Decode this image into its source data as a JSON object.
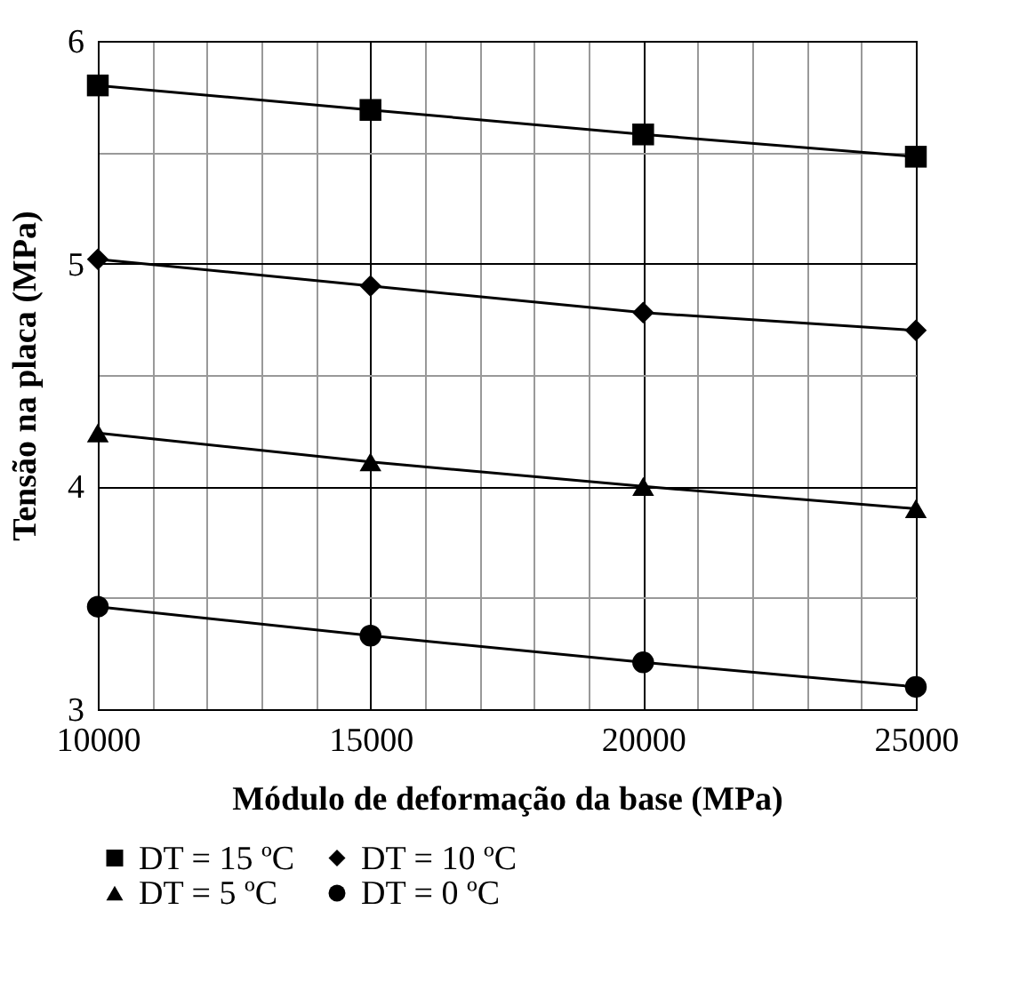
{
  "chart_data": {
    "type": "line",
    "xlabel": "Módulo de deformação da base (MPa)",
    "ylabel": "Tensão na placa (MPa)",
    "x": [
      10000,
      15000,
      20000,
      25000
    ],
    "xlim": [
      10000,
      25000
    ],
    "xticks": [
      10000,
      15000,
      20000,
      25000
    ],
    "ylim": [
      3,
      6
    ],
    "yticks": [
      3,
      4,
      5,
      6
    ],
    "grid": true,
    "legend": "bottom",
    "series": [
      {
        "name": "DT = 15 ºC",
        "color": "#000000",
        "marker": "square",
        "values": [
          5.8,
          5.69,
          5.58,
          5.48
        ]
      },
      {
        "name": "DT = 10 ºC",
        "color": "#000000",
        "marker": "diamond",
        "values": [
          5.02,
          4.9,
          4.78,
          4.7
        ]
      },
      {
        "name": "DT = 5 ºC",
        "color": "#000000",
        "marker": "triangle",
        "values": [
          4.24,
          4.11,
          4.0,
          3.9
        ]
      },
      {
        "name": "DT = 0 ºC",
        "color": "#000000",
        "marker": "circle",
        "values": [
          3.46,
          3.33,
          3.21,
          3.1
        ]
      }
    ]
  }
}
